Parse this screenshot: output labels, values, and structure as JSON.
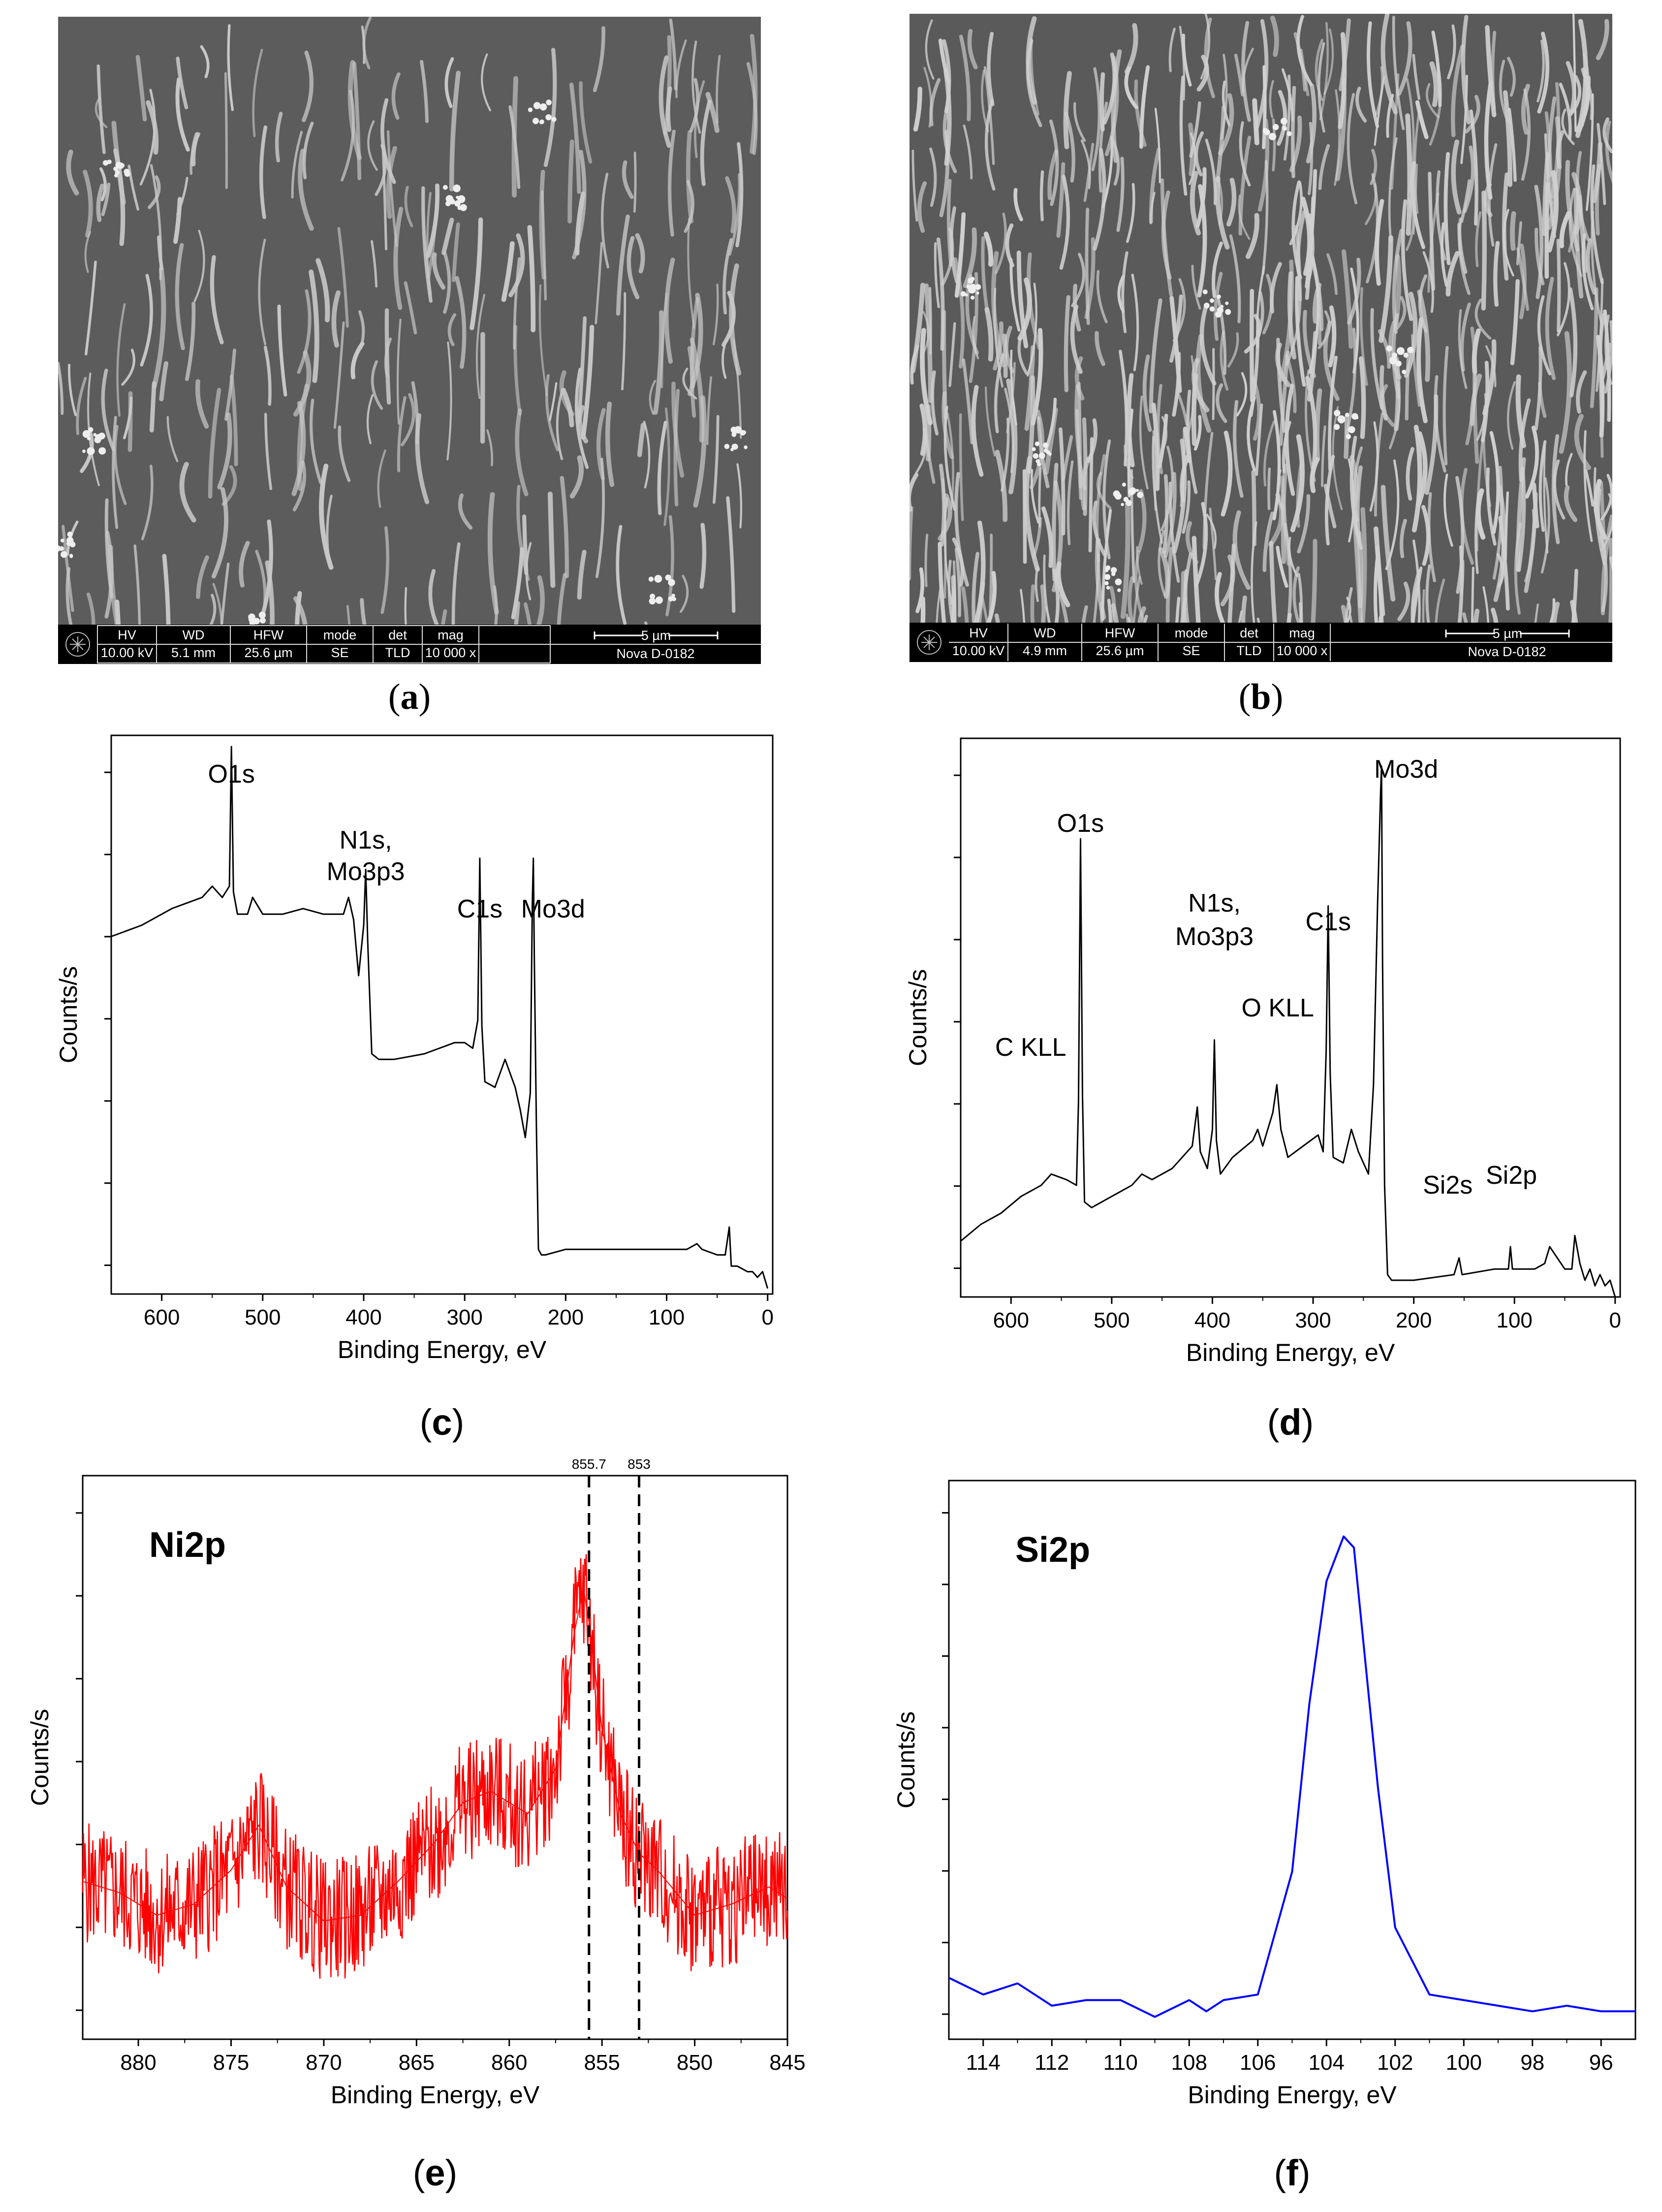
{
  "figure": {
    "panels": [
      "a",
      "b",
      "c",
      "d",
      "e",
      "f"
    ]
  },
  "sem_a": {
    "label": "a",
    "databar": {
      "headers": [
        "HV",
        "WD",
        "HFW",
        "mode",
        "det",
        "mag"
      ],
      "values": [
        "10.00 kV",
        "5.1 mm",
        "25.6 µm",
        "SE",
        "TLD",
        "10 000 x"
      ],
      "scale": "5 µm",
      "instrument": "Nova D-0182"
    },
    "colors": {
      "background": "#5c5c5c",
      "fibers": "#c8c8c8"
    }
  },
  "sem_b": {
    "label": "b",
    "databar": {
      "headers": [
        "HV",
        "WD",
        "HFW",
        "mode",
        "det",
        "mag"
      ],
      "values": [
        "10.00 kV",
        "4.9 mm",
        "25.6 µm",
        "SE",
        "TLD",
        "10 000 x"
      ],
      "scale": "5 µm",
      "instrument": "Nova D-0182"
    },
    "colors": {
      "background": "#5a5a5a",
      "fibers": "#d0d0d0"
    }
  },
  "chart_data": [
    {
      "id": "c",
      "type": "line",
      "label": "c",
      "xlabel": "Binding Energy, eV",
      "ylabel": "Counts/s",
      "xlim": [
        650,
        -5
      ],
      "xticks": [
        600,
        500,
        400,
        300,
        200,
        100,
        0
      ],
      "color": "#000000",
      "annotations": [
        {
          "text": "O1s",
          "x": 531
        },
        {
          "text": "N1s,",
          "x": 398
        },
        {
          "text": "Mo3p3",
          "x": 398
        },
        {
          "text": "C1s",
          "x": 285
        },
        {
          "text": "Mo3d",
          "x": 232
        }
      ],
      "x": [
        650,
        620,
        590,
        560,
        550,
        540,
        533,
        531,
        529,
        525,
        515,
        510,
        500,
        480,
        460,
        440,
        420,
        415,
        410,
        405,
        400,
        398,
        396,
        392,
        385,
        370,
        340,
        310,
        300,
        292,
        287,
        285,
        283,
        280,
        270,
        260,
        250,
        245,
        240,
        235,
        233,
        232,
        231,
        229,
        227,
        224,
        220,
        200,
        150,
        100,
        80,
        70,
        65,
        50,
        42,
        38,
        36,
        30,
        20,
        15,
        10,
        5,
        0
      ],
      "y": [
        0.64,
        0.66,
        0.69,
        0.71,
        0.73,
        0.71,
        0.73,
        0.98,
        0.72,
        0.68,
        0.68,
        0.71,
        0.68,
        0.68,
        0.69,
        0.68,
        0.68,
        0.71,
        0.67,
        0.57,
        0.66,
        0.76,
        0.63,
        0.43,
        0.42,
        0.42,
        0.43,
        0.45,
        0.45,
        0.44,
        0.49,
        0.78,
        0.48,
        0.38,
        0.37,
        0.42,
        0.37,
        0.33,
        0.28,
        0.36,
        0.7,
        0.78,
        0.6,
        0.3,
        0.08,
        0.07,
        0.07,
        0.08,
        0.08,
        0.08,
        0.08,
        0.09,
        0.08,
        0.07,
        0.07,
        0.12,
        0.05,
        0.05,
        0.04,
        0.04,
        0.03,
        0.04,
        0.01
      ]
    },
    {
      "id": "d",
      "type": "line",
      "label": "d",
      "xlabel": "Binding Energy, eV",
      "ylabel": "Counts/s",
      "xlim": [
        650,
        -5
      ],
      "xticks": [
        600,
        500,
        400,
        300,
        200,
        100,
        0
      ],
      "color": "#000000",
      "annotations": [
        {
          "text": "C KLL",
          "x": 600
        },
        {
          "text": "O1s",
          "x": 531
        },
        {
          "text": "N1s,",
          "x": 398
        },
        {
          "text": "Mo3p3",
          "x": 398
        },
        {
          "text": "O KLL",
          "x": 340
        },
        {
          "text": "C1s",
          "x": 285
        },
        {
          "text": "Mo3d",
          "x": 232
        },
        {
          "text": "Si2s",
          "x": 154
        },
        {
          "text": "Si2p",
          "x": 103
        }
      ],
      "x": [
        650,
        630,
        610,
        590,
        570,
        560,
        545,
        535,
        533,
        531,
        529,
        527,
        520,
        500,
        480,
        470,
        460,
        440,
        420,
        415,
        412,
        405,
        400,
        398,
        396,
        392,
        380,
        360,
        355,
        350,
        340,
        336,
        332,
        325,
        310,
        295,
        290,
        287,
        285,
        283,
        280,
        270,
        262,
        255,
        245,
        240,
        236,
        233,
        232,
        231,
        229,
        226,
        222,
        200,
        160,
        155,
        152,
        120,
        106,
        104,
        102,
        80,
        70,
        65,
        50,
        43,
        40,
        35,
        30,
        25,
        20,
        15,
        10,
        5,
        0
      ],
      "y": [
        0.1,
        0.13,
        0.15,
        0.18,
        0.2,
        0.22,
        0.21,
        0.2,
        0.35,
        0.82,
        0.36,
        0.17,
        0.16,
        0.18,
        0.2,
        0.22,
        0.21,
        0.23,
        0.27,
        0.34,
        0.26,
        0.23,
        0.3,
        0.46,
        0.28,
        0.22,
        0.25,
        0.28,
        0.3,
        0.27,
        0.33,
        0.38,
        0.3,
        0.25,
        0.27,
        0.29,
        0.26,
        0.44,
        0.7,
        0.4,
        0.25,
        0.24,
        0.3,
        0.26,
        0.22,
        0.38,
        0.7,
        0.9,
        0.95,
        0.6,
        0.2,
        0.04,
        0.03,
        0.03,
        0.04,
        0.07,
        0.04,
        0.05,
        0.05,
        0.09,
        0.05,
        0.05,
        0.06,
        0.09,
        0.05,
        0.05,
        0.11,
        0.06,
        0.03,
        0.05,
        0.02,
        0.04,
        0.02,
        0.03,
        0.0
      ]
    },
    {
      "id": "e",
      "type": "line",
      "label": "e",
      "title": "Ni2p",
      "xlabel": "Binding Energy, eV",
      "ylabel": "Counts/s",
      "xlim": [
        883,
        845
      ],
      "xticks": [
        880,
        875,
        870,
        865,
        860,
        855,
        850,
        845
      ],
      "color": "#ff0000",
      "reference_lines": [
        {
          "x": 855.7,
          "label": "855.7"
        },
        {
          "x": 853,
          "label": "853"
        }
      ],
      "x": [
        883,
        881,
        879,
        877,
        875,
        873.5,
        872,
        870,
        868,
        866,
        864,
        862.5,
        861,
        859,
        857.5,
        856.5,
        856,
        855.7,
        855,
        854,
        853,
        852,
        850,
        848,
        846,
        845
      ],
      "y": [
        0.28,
        0.26,
        0.22,
        0.24,
        0.3,
        0.38,
        0.27,
        0.21,
        0.22,
        0.28,
        0.35,
        0.42,
        0.44,
        0.4,
        0.48,
        0.72,
        0.8,
        0.74,
        0.55,
        0.4,
        0.33,
        0.3,
        0.22,
        0.24,
        0.27,
        0.25
      ]
    },
    {
      "id": "f",
      "type": "line",
      "label": "f",
      "title": "Si2p",
      "xlabel": "Binding Energy, eV",
      "ylabel": "Counts/s",
      "xlim": [
        115,
        95
      ],
      "xticks": [
        114,
        112,
        110,
        108,
        106,
        104,
        102,
        100,
        98,
        96
      ],
      "color": "#0000ff",
      "x": [
        115,
        114,
        113,
        112,
        111,
        110,
        109,
        108,
        107.5,
        107,
        106,
        105,
        104.5,
        104,
        103.5,
        103.2,
        102.5,
        102,
        101,
        99,
        98,
        97,
        96,
        95
      ],
      "y": [
        0.11,
        0.08,
        0.1,
        0.06,
        0.07,
        0.07,
        0.04,
        0.07,
        0.05,
        0.07,
        0.08,
        0.3,
        0.6,
        0.82,
        0.9,
        0.88,
        0.45,
        0.2,
        0.08,
        0.06,
        0.05,
        0.06,
        0.05,
        0.05
      ]
    }
  ]
}
